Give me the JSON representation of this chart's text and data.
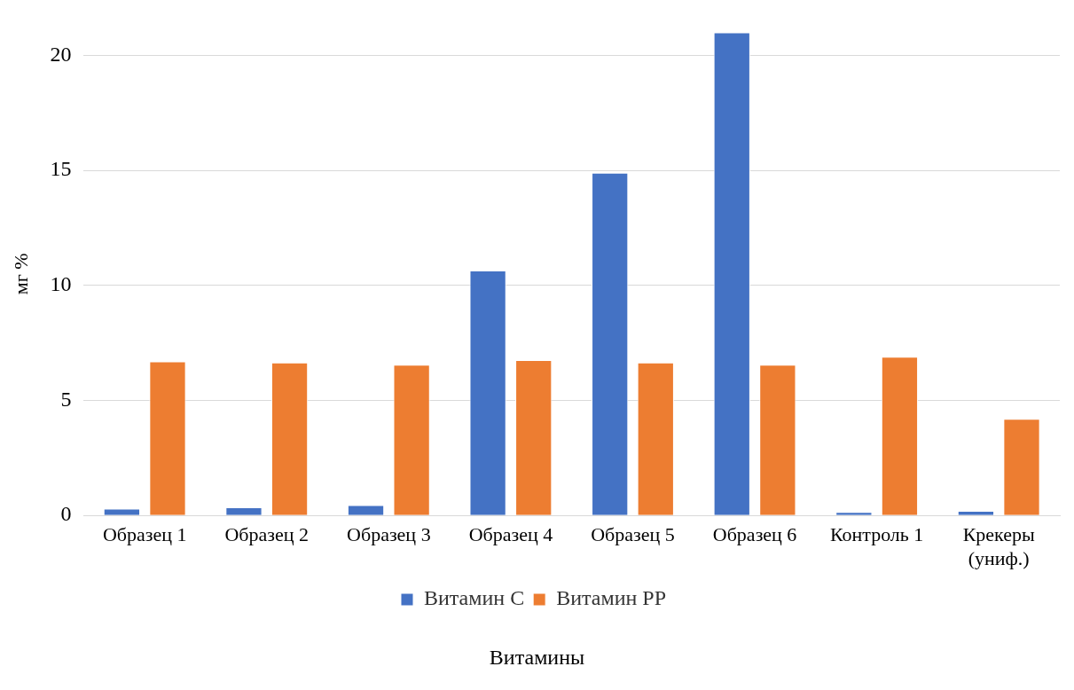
{
  "chart_data": {
    "type": "bar",
    "xlabel": "Витамины",
    "ylabel": "мг %",
    "categories": [
      "Образец 1",
      "Образец 2",
      "Образец 3",
      "Образец 4",
      "Образец 5",
      "Образец 6",
      "Контроль 1",
      "Крекеры (униф.)"
    ],
    "series": [
      {
        "name": "Витамин С",
        "color": "#4472c4",
        "values": [
          0.3,
          0.35,
          0.45,
          10.65,
          14.9,
          21,
          0.15,
          0.2
        ]
      },
      {
        "name": "Витамин РР",
        "color": "#ed7d31",
        "values": [
          6.7,
          6.65,
          6.55,
          6.75,
          6.65,
          6.55,
          6.9,
          4.2
        ]
      }
    ],
    "ylim": [
      0,
      21
    ],
    "yticks": [
      0,
      5,
      10,
      15,
      20
    ],
    "grid": "y",
    "legend": "bottom"
  }
}
